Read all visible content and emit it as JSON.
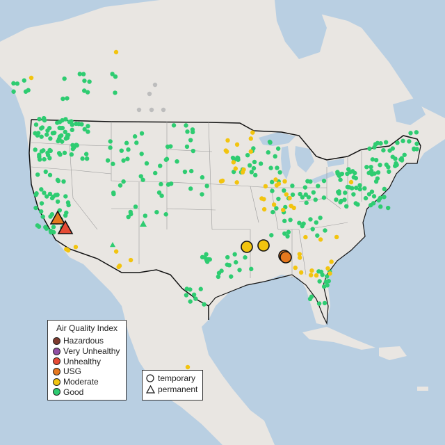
{
  "legend": {
    "title": "Air Quality Index",
    "levels": [
      {
        "label": "Hazardous",
        "color": "#7e3b2e"
      },
      {
        "label": "Very Unhealthy",
        "color": "#8f4fa3"
      },
      {
        "label": "Unhealthy",
        "color": "#e64b35"
      },
      {
        "label": "USG",
        "color": "#e6781e"
      },
      {
        "label": "Moderate",
        "color": "#f2c40f"
      },
      {
        "label": "Good",
        "color": "#2ecc71"
      }
    ]
  },
  "monitor_types": [
    {
      "label": "temporary",
      "symbol": "circle"
    },
    {
      "label": "permanent",
      "symbol": "triangle"
    }
  ],
  "basemap_colors": {
    "land": "#e9e6e2",
    "water": "#b9cfe2",
    "country_border": "#111111",
    "state_border": "#9a9a9a"
  },
  "no_data_color": "#bdbdbd"
}
